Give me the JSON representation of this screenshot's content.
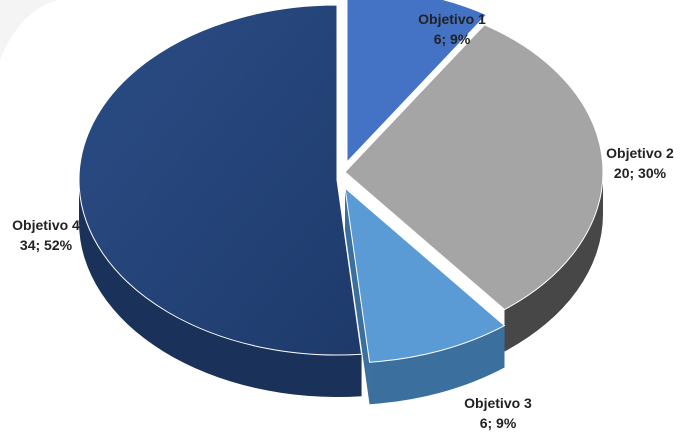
{
  "chart_data": {
    "type": "pie",
    "style": "3d-exploded",
    "slices": [
      {
        "label": "Objetivo 1",
        "value": 6,
        "percent": "9%",
        "text": "6; 9%",
        "color": "#4472C4"
      },
      {
        "label": "Objetivo 2",
        "value": 20,
        "percent": "30%",
        "text": "20; 30%",
        "color": "#A5A5A5"
      },
      {
        "label": "Objetivo 3",
        "value": 6,
        "percent": "9%",
        "text": "6; 9%",
        "color": "#5B9BD5"
      },
      {
        "label": "Objetivo 4",
        "value": 34,
        "percent": "52%",
        "text": "34; 52%",
        "color": "#264478"
      }
    ]
  }
}
